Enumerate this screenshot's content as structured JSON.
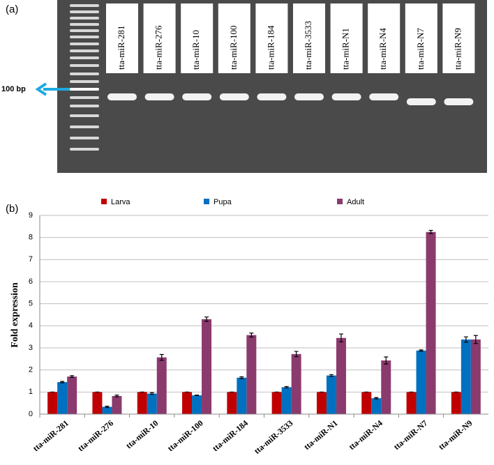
{
  "panels": {
    "a": "(a)",
    "b": "(b)"
  },
  "gel": {
    "marker": "100 bp",
    "lanes": [
      "tta-miR-281",
      "tta-miR-276",
      "tta-miR-10",
      "tta-miR-100",
      "tta-miR-184",
      "tta-miR-3533",
      "tta-miR-N1",
      "tta-miR-N4",
      "tta-miR-N7",
      "tta-miR-N9"
    ]
  },
  "chart_data": {
    "type": "bar",
    "y_label": "Fold expression",
    "categories": [
      "tta-miR-281",
      "tta-miR-276",
      "tta-miR-10",
      "tta-miR-100",
      "tta-miR-184",
      "tta-miR-3533",
      "tta-miR-N1",
      "tta-miR-N4",
      "tta-miR-N7",
      "tta-miR-N9"
    ],
    "series": [
      {
        "name": "Larva",
        "color": "#c00000",
        "values": [
          1,
          1,
          1,
          1,
          1,
          1,
          1,
          1,
          1,
          1
        ],
        "errors": [
          0,
          0,
          0,
          0,
          0,
          0,
          0,
          0,
          0,
          0
        ]
      },
      {
        "name": "Pupa",
        "color": "#0070c0",
        "values": [
          1.45,
          0.33,
          0.93,
          0.85,
          1.65,
          1.22,
          1.75,
          0.72,
          2.88,
          3.38
        ],
        "errors": [
          0.03,
          0.03,
          0.04,
          0.01,
          0.04,
          0.03,
          0.04,
          0.03,
          0.03,
          0.12
        ]
      },
      {
        "name": "Adult",
        "color": "#8b3a6e",
        "values": [
          1.7,
          0.82,
          2.57,
          4.3,
          3.58,
          2.72,
          3.45,
          2.43,
          8.25,
          3.38
        ],
        "errors": [
          0.04,
          0.04,
          0.13,
          0.1,
          0.09,
          0.12,
          0.18,
          0.16,
          0.07,
          0.18
        ]
      }
    ],
    "ylim": [
      0,
      9
    ],
    "yticks": [
      0,
      1,
      2,
      3,
      4,
      5,
      6,
      7,
      8,
      9
    ],
    "grid": true,
    "legend": "top"
  }
}
